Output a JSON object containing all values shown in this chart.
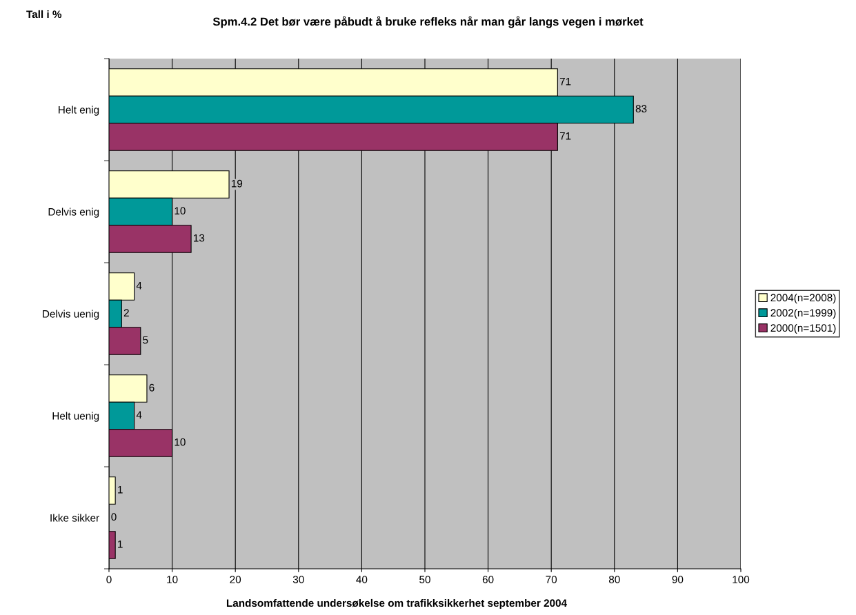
{
  "chart_data": {
    "type": "bar",
    "orientation": "horizontal",
    "title": "Spm.4.2 Det bør være påbudt å bruke refleks når man går langs vegen i mørket",
    "categories": [
      "Helt enig",
      "Delvis enig",
      "Delvis uenig",
      "Helt uenig",
      "Ikke sikker"
    ],
    "series": [
      {
        "name": "2004(n=2008)",
        "color": "#ffffcc",
        "values": [
          71,
          19,
          4,
          6,
          1
        ]
      },
      {
        "name": "2002(n=1999)",
        "color": "#009999",
        "values": [
          83,
          10,
          2,
          4,
          0
        ]
      },
      {
        "name": "2000(n=1501)",
        "color": "#993366",
        "values": [
          71,
          13,
          5,
          10,
          1
        ]
      }
    ],
    "xlim": [
      0,
      100
    ],
    "xticks": [
      0,
      10,
      20,
      30,
      40,
      50,
      60,
      70,
      80,
      90,
      100
    ],
    "grid": "x",
    "legend": "right",
    "data_labels": true,
    "annotations": [
      "Tall i %",
      "Landsomfattende undersøkelse om trafikksikkerhet september 2004"
    ]
  }
}
